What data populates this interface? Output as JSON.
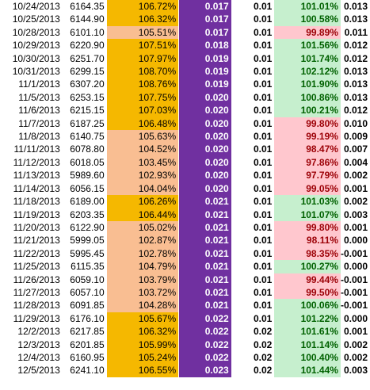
{
  "colors": {
    "orange": "#f5b800",
    "peach": "#f9be92",
    "purple": "#7030a0",
    "green_fill": "#c6efce",
    "green_text": "#006100",
    "red_fill": "#ffc7ce",
    "red_text": "#9c0006"
  },
  "rows": [
    {
      "date": "10/24/2013",
      "price": "6164.35",
      "pct1": "106.72%",
      "purple": "0.017",
      "dark": "0.01",
      "pct2": "101.01%",
      "last": "0.013",
      "up1": true,
      "up2": true
    },
    {
      "date": "10/25/2013",
      "price": "6144.90",
      "pct1": "106.32%",
      "purple": "0.017",
      "dark": "0.01",
      "pct2": "100.58%",
      "last": "0.013",
      "up1": true,
      "up2": true
    },
    {
      "date": "10/28/2013",
      "price": "6101.10",
      "pct1": "105.51%",
      "purple": "0.017",
      "dark": "0.01",
      "pct2": "99.89%",
      "last": "0.011",
      "up1": false,
      "up2": false
    },
    {
      "date": "10/29/2013",
      "price": "6220.90",
      "pct1": "107.51%",
      "purple": "0.018",
      "dark": "0.01",
      "pct2": "101.56%",
      "last": "0.012",
      "up1": true,
      "up2": true
    },
    {
      "date": "10/30/2013",
      "price": "6251.70",
      "pct1": "107.97%",
      "purple": "0.019",
      "dark": "0.01",
      "pct2": "101.74%",
      "last": "0.012",
      "up1": true,
      "up2": true
    },
    {
      "date": "10/31/2013",
      "price": "6299.15",
      "pct1": "108.70%",
      "purple": "0.019",
      "dark": "0.01",
      "pct2": "102.12%",
      "last": "0.013",
      "up1": true,
      "up2": true
    },
    {
      "date": "11/1/2013",
      "price": "6307.20",
      "pct1": "108.76%",
      "purple": "0.019",
      "dark": "0.01",
      "pct2": "101.90%",
      "last": "0.013",
      "up1": true,
      "up2": true
    },
    {
      "date": "11/5/2013",
      "price": "6253.15",
      "pct1": "107.75%",
      "purple": "0.020",
      "dark": "0.01",
      "pct2": "100.86%",
      "last": "0.013",
      "up1": true,
      "up2": true
    },
    {
      "date": "11/6/2013",
      "price": "6215.15",
      "pct1": "107.03%",
      "purple": "0.020",
      "dark": "0.01",
      "pct2": "100.21%",
      "last": "0.012",
      "up1": true,
      "up2": true
    },
    {
      "date": "11/7/2013",
      "price": "6187.25",
      "pct1": "106.48%",
      "purple": "0.020",
      "dark": "0.01",
      "pct2": "99.80%",
      "last": "0.010",
      "up1": true,
      "up2": false
    },
    {
      "date": "11/8/2013",
      "price": "6140.75",
      "pct1": "105.63%",
      "purple": "0.020",
      "dark": "0.01",
      "pct2": "99.19%",
      "last": "0.009",
      "up1": false,
      "up2": false
    },
    {
      "date": "11/11/2013",
      "price": "6078.80",
      "pct1": "104.52%",
      "purple": "0.020",
      "dark": "0.01",
      "pct2": "98.47%",
      "last": "0.007",
      "up1": false,
      "up2": false
    },
    {
      "date": "11/12/2013",
      "price": "6018.05",
      "pct1": "103.45%",
      "purple": "0.020",
      "dark": "0.01",
      "pct2": "97.86%",
      "last": "0.004",
      "up1": false,
      "up2": false
    },
    {
      "date": "11/13/2013",
      "price": "5989.60",
      "pct1": "102.93%",
      "purple": "0.020",
      "dark": "0.01",
      "pct2": "97.79%",
      "last": "0.002",
      "up1": false,
      "up2": false
    },
    {
      "date": "11/14/2013",
      "price": "6056.15",
      "pct1": "104.04%",
      "purple": "0.020",
      "dark": "0.01",
      "pct2": "99.05%",
      "last": "0.001",
      "up1": false,
      "up2": false
    },
    {
      "date": "11/18/2013",
      "price": "6189.00",
      "pct1": "106.26%",
      "purple": "0.021",
      "dark": "0.01",
      "pct2": "101.03%",
      "last": "0.002",
      "up1": true,
      "up2": true
    },
    {
      "date": "11/19/2013",
      "price": "6203.35",
      "pct1": "106.44%",
      "purple": "0.021",
      "dark": "0.01",
      "pct2": "101.07%",
      "last": "0.003",
      "up1": true,
      "up2": true
    },
    {
      "date": "11/20/2013",
      "price": "6122.90",
      "pct1": "105.02%",
      "purple": "0.021",
      "dark": "0.01",
      "pct2": "99.80%",
      "last": "0.001",
      "up1": false,
      "up2": false
    },
    {
      "date": "11/21/2013",
      "price": "5999.05",
      "pct1": "102.87%",
      "purple": "0.021",
      "dark": "0.01",
      "pct2": "98.11%",
      "last": "0.000",
      "up1": false,
      "up2": false
    },
    {
      "date": "11/22/2013",
      "price": "5995.45",
      "pct1": "102.78%",
      "purple": "0.021",
      "dark": "0.01",
      "pct2": "98.35%",
      "last": "-0.001",
      "up1": false,
      "up2": false
    },
    {
      "date": "11/25/2013",
      "price": "6115.35",
      "pct1": "104.79%",
      "purple": "0.021",
      "dark": "0.01",
      "pct2": "100.27%",
      "last": "0.000",
      "up1": false,
      "up2": true
    },
    {
      "date": "11/26/2013",
      "price": "6059.10",
      "pct1": "103.79%",
      "purple": "0.021",
      "dark": "0.01",
      "pct2": "99.44%",
      "last": "-0.001",
      "up1": false,
      "up2": false
    },
    {
      "date": "11/27/2013",
      "price": "6057.10",
      "pct1": "103.72%",
      "purple": "0.021",
      "dark": "0.01",
      "pct2": "99.50%",
      "last": "-0.001",
      "up1": false,
      "up2": false
    },
    {
      "date": "11/28/2013",
      "price": "6091.85",
      "pct1": "104.28%",
      "purple": "0.021",
      "dark": "0.01",
      "pct2": "100.06%",
      "last": "-0.001",
      "up1": false,
      "up2": true
    },
    {
      "date": "11/29/2013",
      "price": "6176.10",
      "pct1": "105.67%",
      "purple": "0.022",
      "dark": "0.01",
      "pct2": "101.22%",
      "last": "0.000",
      "up1": true,
      "up2": true
    },
    {
      "date": "12/2/2013",
      "price": "6217.85",
      "pct1": "106.32%",
      "purple": "0.022",
      "dark": "0.02",
      "pct2": "101.61%",
      "last": "0.001",
      "up1": true,
      "up2": true
    },
    {
      "date": "12/3/2013",
      "price": "6201.85",
      "pct1": "105.99%",
      "purple": "0.022",
      "dark": "0.02",
      "pct2": "101.14%",
      "last": "0.002",
      "up1": true,
      "up2": true
    },
    {
      "date": "12/4/2013",
      "price": "6160.95",
      "pct1": "105.24%",
      "purple": "0.022",
      "dark": "0.02",
      "pct2": "100.40%",
      "last": "0.002",
      "up1": true,
      "up2": true
    },
    {
      "date": "12/5/2013",
      "price": "6241.10",
      "pct1": "106.55%",
      "purple": "0.023",
      "dark": "0.02",
      "pct2": "101.44%",
      "last": "0.003",
      "up1": true,
      "up2": true
    }
  ]
}
